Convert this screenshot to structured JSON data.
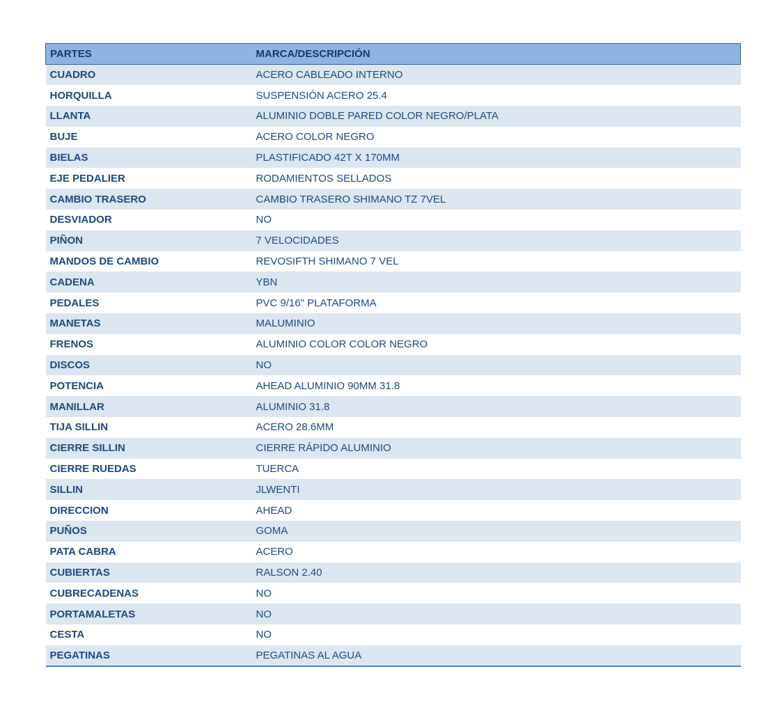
{
  "table": {
    "title": "especificaciones-partes-bicicleta",
    "columns": [
      {
        "label": "PARTES"
      },
      {
        "label": "MARCA/DESCRIPCIÓN"
      }
    ],
    "rows": [
      {
        "parte": "CUADRO",
        "descripcion": "ACERO CABLEADO INTERNO"
      },
      {
        "parte": "HORQUILLA",
        "descripcion": "SUSPENSIÓN ACERO 25.4"
      },
      {
        "parte": "LLANTA",
        "descripcion": "ALUMINIO DOBLE PARED COLOR NEGRO/PLATA"
      },
      {
        "parte": "BUJE",
        "descripcion": "ACERO COLOR NEGRO"
      },
      {
        "parte": "BIELAS",
        "descripcion": "PLASTIFICADO 42T X 170MM"
      },
      {
        "parte": "EJE PEDALIER",
        "descripcion": "RODAMIENTOS SELLADOS"
      },
      {
        "parte": "CAMBIO TRASERO",
        "descripcion": "CAMBIO TRASERO SHIMANO TZ 7VEL"
      },
      {
        "parte": "DESVIADOR",
        "descripcion": "NO"
      },
      {
        "parte": "PIÑON",
        "descripcion": "7 VELOCIDADES"
      },
      {
        "parte": "MANDOS DE CAMBIO",
        "descripcion": "REVOSIFTH SHIMANO 7 VEL"
      },
      {
        "parte": "CADENA",
        "descripcion": "YBN"
      },
      {
        "parte": "PEDALES",
        "descripcion": "PVC 9/16\" PLATAFORMA"
      },
      {
        "parte": "MANETAS",
        "descripcion": "MALUMINIO"
      },
      {
        "parte": "FRENOS",
        "descripcion": "ALUMINIO COLOR COLOR NEGRO"
      },
      {
        "parte": "DISCOS",
        "descripcion": "NO"
      },
      {
        "parte": "POTENCIA",
        "descripcion": "AHEAD ALUMINIO 90MM 31.8"
      },
      {
        "parte": "MANILLAR",
        "descripcion": "ALUMINIO 31.8"
      },
      {
        "parte": "TIJA SILLIN",
        "descripcion": "ACERO 28.6MM"
      },
      {
        "parte": "CIERRE SILLIN",
        "descripcion": "CIERRE RÁPIDO ALUMINIO"
      },
      {
        "parte": "CIERRE RUEDAS",
        "descripcion": "TUERCA"
      },
      {
        "parte": "SILLIN",
        "descripcion": "JLWENTI"
      },
      {
        "parte": "DIRECCION",
        "descripcion": "AHEAD"
      },
      {
        "parte": "PUÑOS",
        "descripcion": "GOMA"
      },
      {
        "parte": "PATA CABRA",
        "descripcion": "ACERO"
      },
      {
        "parte": "CUBIERTAS",
        "descripcion": "RALSON 2.40"
      },
      {
        "parte": "CUBRECADENAS",
        "descripcion": "NO"
      },
      {
        "parte": "PORTAMALETAS",
        "descripcion": "NO"
      },
      {
        "parte": "CESTA",
        "descripcion": "NO"
      },
      {
        "parte": "PEGATINAS",
        "descripcion": "PEGATINAS AL AGUA"
      }
    ],
    "colors": {
      "header_bg": "#8DB4E2",
      "header_text": "#1F3864",
      "header_border": "#376092",
      "band_bg": "#DCE6F1",
      "row_bg": "#FFFFFF",
      "cell_text": "#1F497D",
      "bottom_border": "#4F81BD",
      "page_bg": "#FFFFFF"
    }
  }
}
